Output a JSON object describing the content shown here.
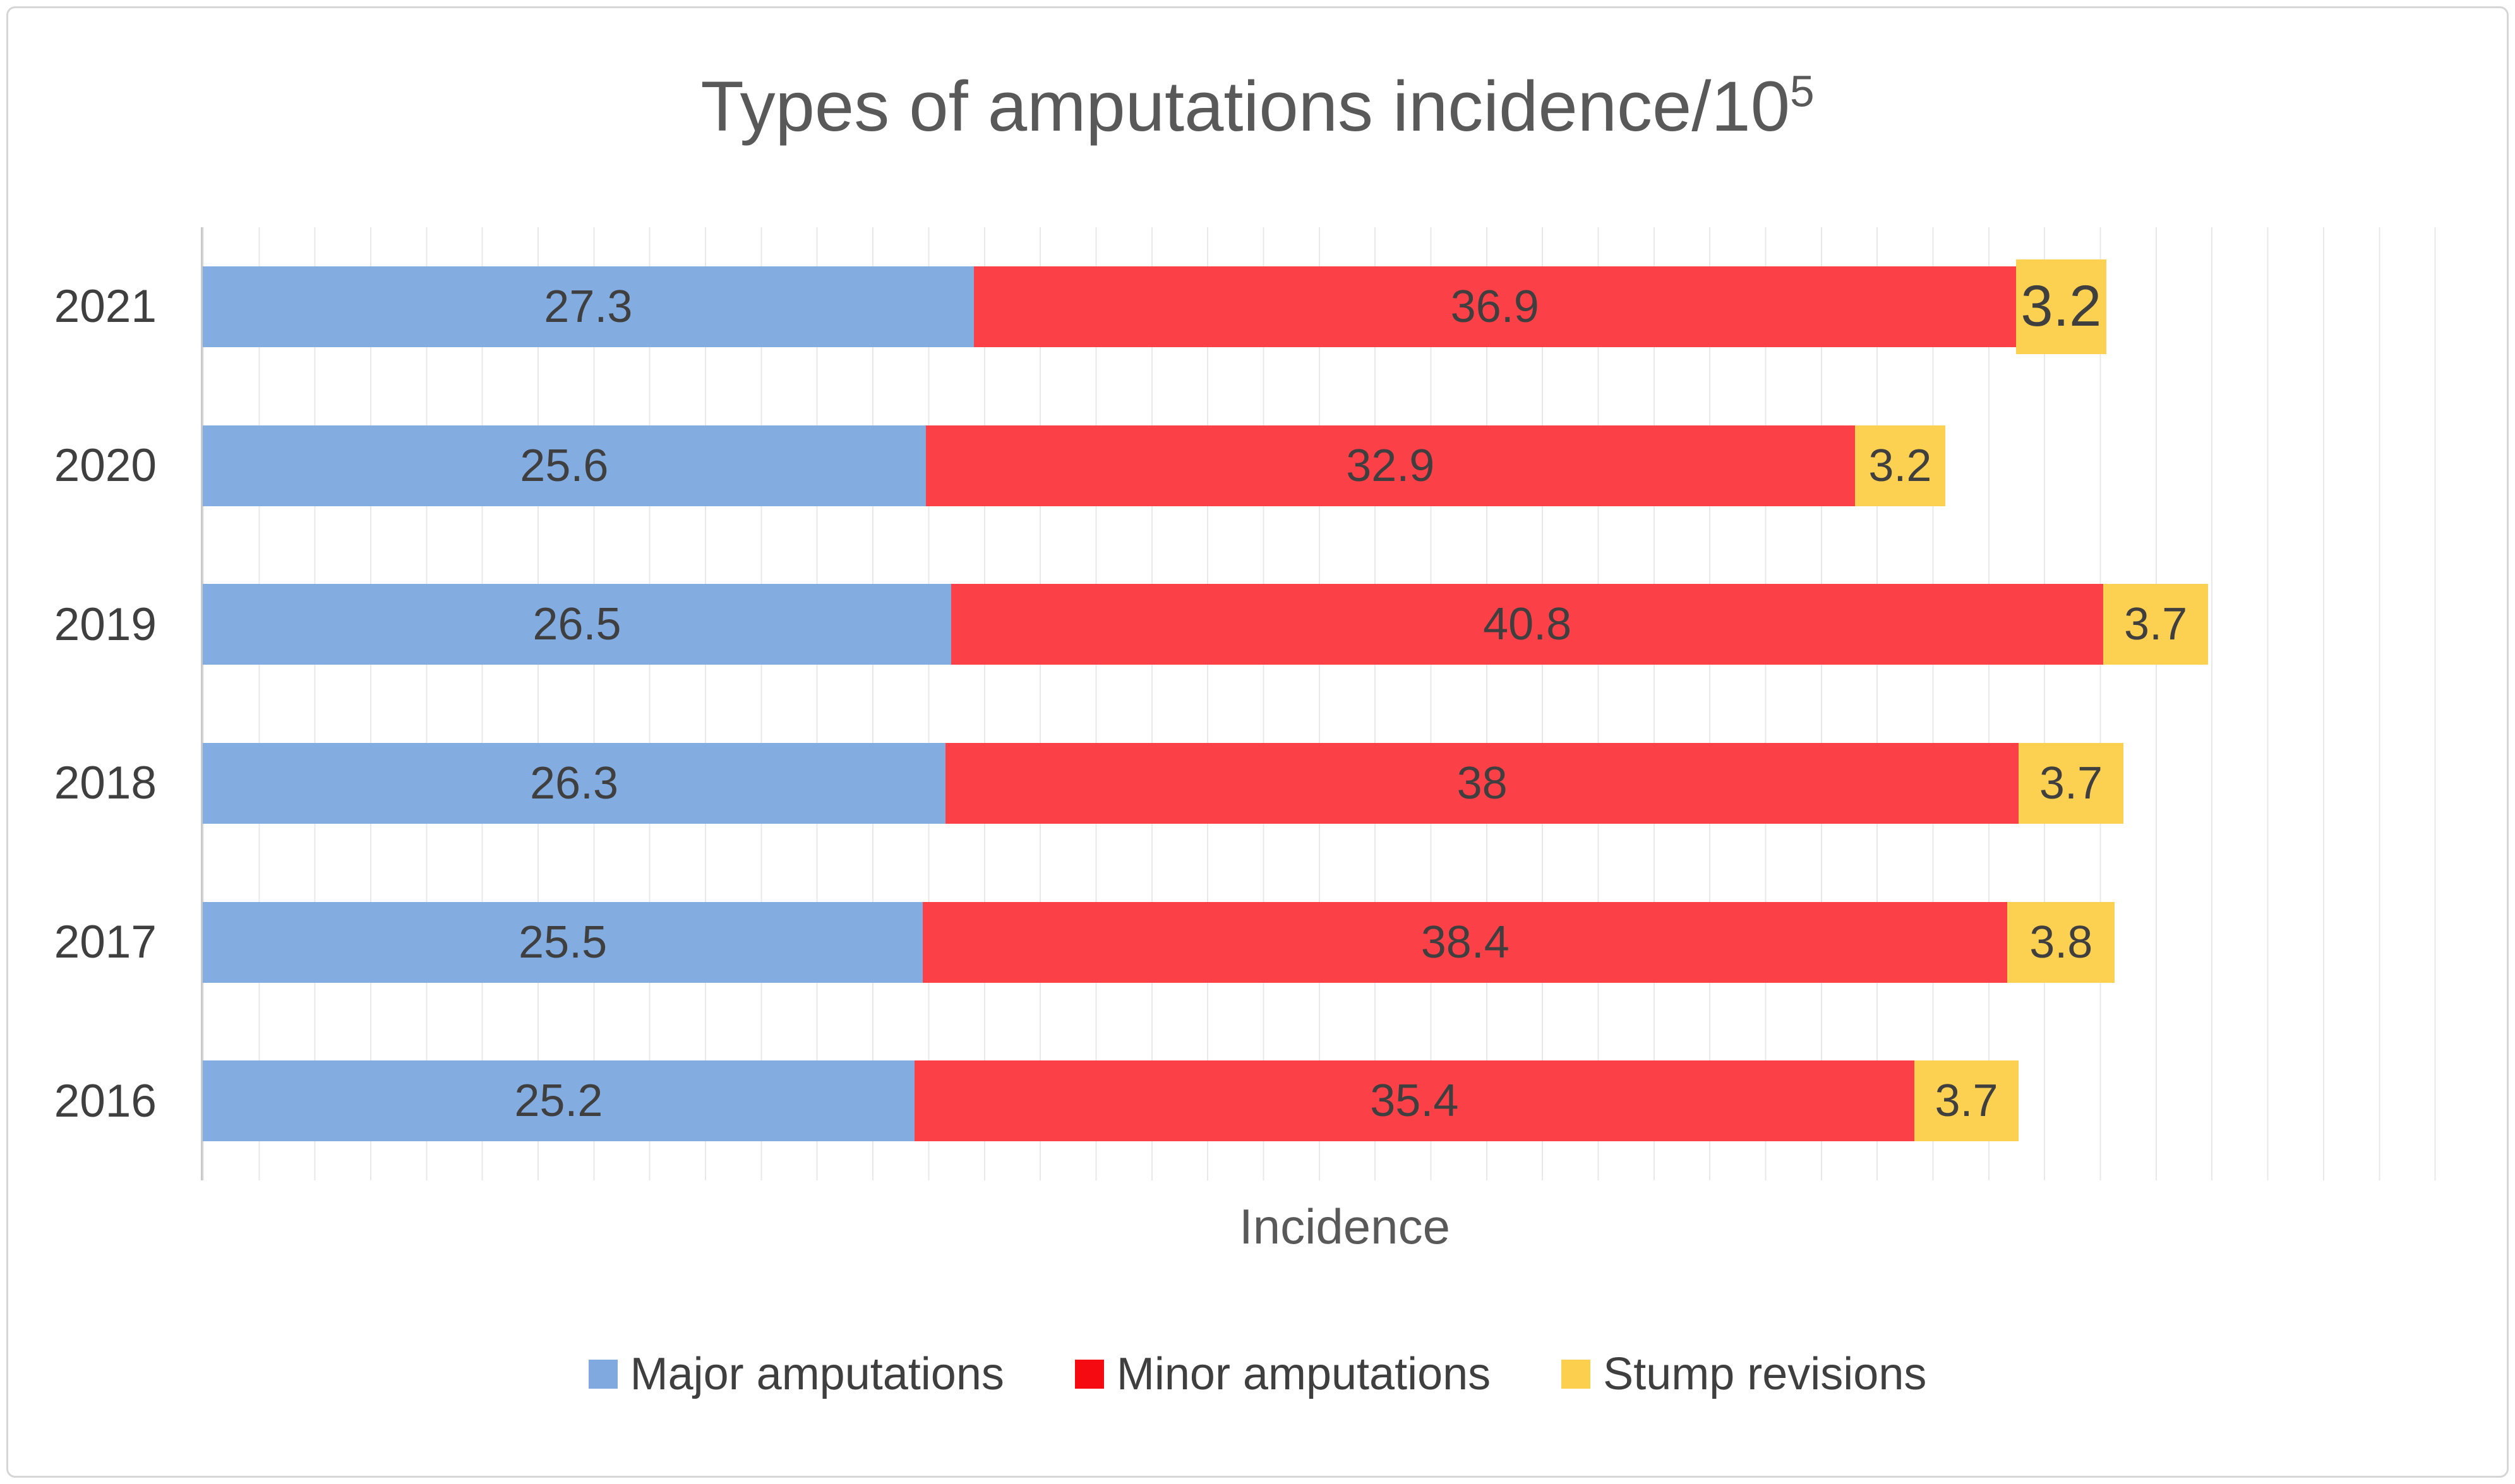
{
  "chart_data": {
    "type": "bar",
    "orientation": "horizontal",
    "stacked": true,
    "title": "Types of amputations incidence/10⁵",
    "title_main": "Types of amputations incidence/10",
    "title_superscript": "5",
    "xlabel": "Incidence",
    "ylabel": "",
    "categories": [
      "2021",
      "2020",
      "2019",
      "2018",
      "2017",
      "2016"
    ],
    "series": [
      {
        "name": "Major amputations",
        "color": "#83ACE0",
        "legend_color": "#7FA9DF",
        "values": [
          27.3,
          25.6,
          26.5,
          26.3,
          25.5,
          25.2
        ]
      },
      {
        "name": "Minor amputations",
        "color": "#FB4048",
        "legend_color": "#F40A10",
        "values": [
          36.9,
          32.9,
          40.8,
          38,
          38.4,
          35.4
        ]
      },
      {
        "name": "Stump revisions",
        "color": "#FCD050",
        "legend_color": "#FCCF4E",
        "values": [
          3.2,
          3.2,
          3.7,
          3.7,
          3.8,
          3.7
        ]
      }
    ],
    "xlim": [
      0,
      81
    ],
    "gridlines": {
      "axis": "x",
      "interval_units": 2,
      "visible": true
    },
    "legend_position": "bottom",
    "data_labels": "inside-center",
    "emphasized_label": {
      "category": "2021",
      "series": "Stump revisions"
    }
  },
  "colors": {
    "title_text": "#595959",
    "label_text": "#3F3F3F",
    "gridline": "#E8E8E8",
    "axis_line": "#C8C8C8",
    "frame_border": "#D6D6D6",
    "background": "#FFFFFF"
  }
}
